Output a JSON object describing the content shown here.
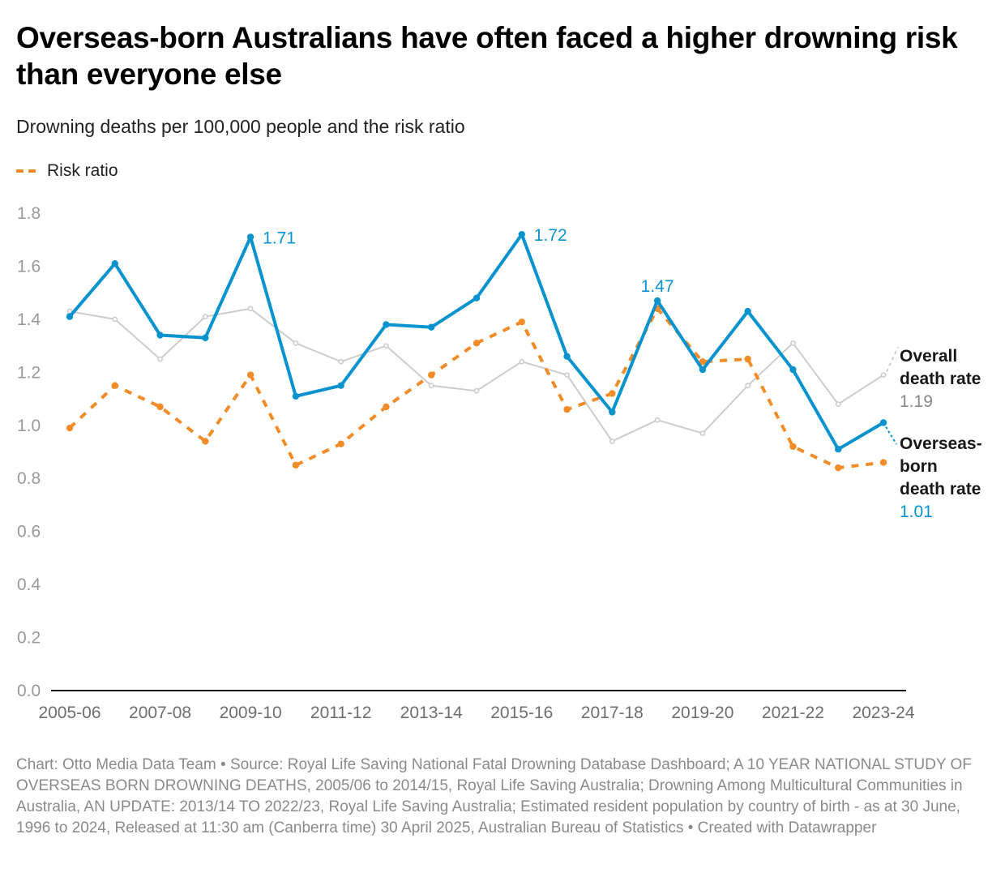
{
  "header": {
    "title": "Overseas-born Australians have often faced a higher drowning risk than everyone else",
    "subtitle": "Drowning deaths per 100,000 people and the risk ratio"
  },
  "legend": {
    "items": [
      {
        "label": "Risk ratio",
        "color": "#f28c28",
        "style": "dashed"
      }
    ]
  },
  "footer": {
    "text": "Chart: Otto Media Data Team • Source: Royal Life Saving National Fatal Drowning Database Dashboard; A 10 YEAR NATIONAL STUDY OF OVERSEAS BORN DROWNING DEATHS, 2005/06 to 2014/15, Royal Life Saving Australia; Drowning Among Multicultural Communities in Australia, AN UPDATE: 2013/14 TO 2022/23, Royal Life Saving Australia; Estimated resident population by country of birth - as at 30 June, 1996 to 2024, Released at 11:30 am (Canberra time) 30 April 2025, Australian Bureau of Statistics • Created with Datawrapper"
  },
  "chart_data": {
    "type": "line",
    "title": "Overseas-born Australians have often faced a higher drowning risk than everyone else",
    "subtitle": "Drowning deaths per 100,000 people and the risk ratio",
    "xlabel": "",
    "ylabel": "",
    "ylim": [
      0,
      1.8
    ],
    "yticks": [
      0.0,
      0.2,
      0.4,
      0.6,
      0.8,
      1.0,
      1.2,
      1.4,
      1.6,
      1.8
    ],
    "ytick_labels": [
      "0.0",
      "0.2",
      "0.4",
      "0.6",
      "0.8",
      "1.0",
      "1.2",
      "1.4",
      "1.6",
      "1.8"
    ],
    "grid": false,
    "legend_position": "top-left",
    "categories": [
      "2005-06",
      "2006-07",
      "2007-08",
      "2008-09",
      "2009-10",
      "2010-11",
      "2011-12",
      "2012-13",
      "2013-14",
      "2014-15",
      "2015-16",
      "2016-17",
      "2017-18",
      "2018-19",
      "2019-20",
      "2020-21",
      "2021-22",
      "2022-23",
      "2023-24"
    ],
    "xtick_labels": [
      "2005-06",
      "2007-08",
      "2009-10",
      "2011-12",
      "2013-14",
      "2015-16",
      "2017-18",
      "2019-20",
      "2021-22",
      "2023-24"
    ],
    "series": [
      {
        "name": "Overall death rate",
        "color": "#cccccc",
        "style": "solid-thin",
        "values": [
          1.43,
          1.4,
          1.25,
          1.41,
          1.44,
          1.31,
          1.24,
          1.3,
          1.15,
          1.13,
          1.24,
          1.19,
          0.94,
          1.02,
          0.97,
          1.15,
          1.31,
          1.08,
          1.19
        ],
        "end_label": {
          "title_lines": [
            "Overall",
            "death rate"
          ],
          "value": "1.19",
          "value_color": "#888888"
        }
      },
      {
        "name": "Risk ratio",
        "color": "#f28c28",
        "style": "dashed",
        "values": [
          0.99,
          1.15,
          1.07,
          0.94,
          1.19,
          0.85,
          0.93,
          1.07,
          1.19,
          1.31,
          1.39,
          1.06,
          1.12,
          1.44,
          1.24,
          1.25,
          0.92,
          0.84,
          0.86
        ]
      },
      {
        "name": "Overseas-born death rate",
        "color": "#0893cf",
        "style": "solid-thick",
        "values": [
          1.41,
          1.61,
          1.34,
          1.33,
          1.71,
          1.11,
          1.15,
          1.38,
          1.37,
          1.48,
          1.72,
          1.26,
          1.05,
          1.47,
          1.21,
          1.43,
          1.21,
          0.91,
          1.01
        ],
        "end_label": {
          "title_lines": [
            "Overseas-",
            "born",
            "death rate"
          ],
          "value": "1.01",
          "value_color": "#0893cf"
        }
      }
    ],
    "annotations": [
      {
        "series": "Overseas-born death rate",
        "category": "2009-10",
        "text": "1.71",
        "position": "right"
      },
      {
        "series": "Overseas-born death rate",
        "category": "2015-16",
        "text": "1.72",
        "position": "right"
      },
      {
        "series": "Overseas-born death rate",
        "category": "2018-19",
        "text": "1.47",
        "position": "above"
      }
    ]
  }
}
